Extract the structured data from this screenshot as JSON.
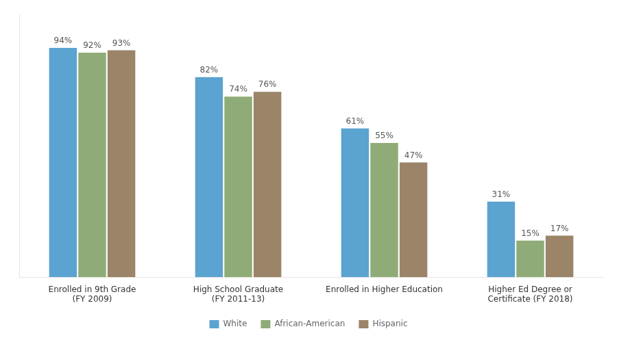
{
  "chart_data": {
    "type": "bar",
    "categories": [
      "Enrolled in 9th Grade\n(FY 2009)",
      "High School Graduate\n(FY 2011-13)",
      "Enrolled in Higher Education",
      "Higher Ed Degree or\nCertificate (FY 2018)"
    ],
    "series": [
      {
        "name": "White",
        "color": "#5ba3d0",
        "values": [
          94,
          82,
          61,
          31
        ],
        "value_labels": [
          "94%",
          "82%",
          "61%",
          "31%"
        ]
      },
      {
        "name": "African-American",
        "color": "#8fac78",
        "values": [
          92,
          74,
          55,
          15
        ],
        "value_labels": [
          "92%",
          "74%",
          "55%",
          "15%"
        ]
      },
      {
        "name": "Hispanic",
        "color": "#9b8468",
        "values": [
          93,
          76,
          47,
          17
        ],
        "value_labels": [
          "93%",
          "76%",
          "47%",
          "17%"
        ]
      }
    ],
    "ylim": [
      0,
      108
    ],
    "grid": false,
    "legend": "bottom",
    "data_labels": true,
    "tick_labels": "x"
  }
}
